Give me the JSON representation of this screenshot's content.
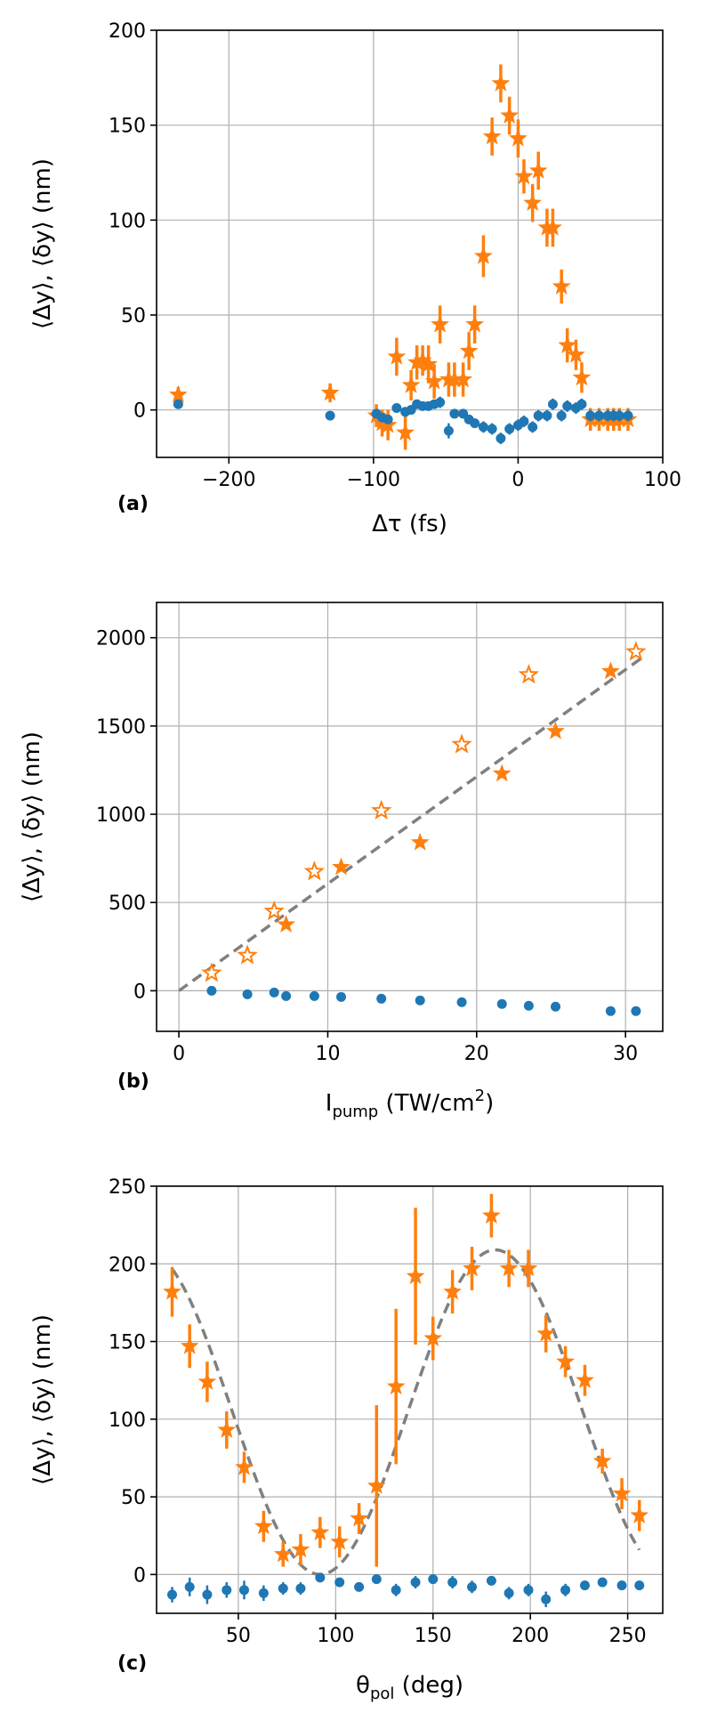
{
  "colors": {
    "orange": "#ff7f0e",
    "blue": "#1f77b4",
    "fit": "#808080",
    "grid": "#b0b0b0"
  },
  "chart_data": [
    {
      "type": "scatter",
      "panel_label": "(a)",
      "xlabel": "Δτ (fs)",
      "ylabel": "⟨Δy⟩, ⟨δy⟩ (nm)",
      "xlim": [
        -250,
        100
      ],
      "ylim": [
        -25,
        200
      ],
      "xticks": [
        -200,
        -100,
        0,
        100
      ],
      "xtick_labels": [
        "−200",
        "−100",
        "0",
        "100"
      ],
      "yticks": [
        0,
        50,
        100,
        150,
        200
      ],
      "ytick_labels": [
        "0",
        "50",
        "100",
        "150",
        "200"
      ],
      "series": [
        {
          "name": "Δy",
          "marker": "star",
          "filled": true,
          "x": [
            -235,
            -130,
            -98,
            -94,
            -90,
            -84,
            -78,
            -74,
            -70,
            -66,
            -62,
            -58,
            -54,
            -48,
            -44,
            -38,
            -34,
            -30,
            -24,
            -18,
            -12,
            -6,
            0,
            4,
            10,
            14,
            20,
            24,
            30,
            34,
            40,
            44,
            50,
            56,
            62,
            66,
            70,
            76
          ],
          "y": [
            8,
            9,
            -3,
            -7,
            -8,
            28,
            -12,
            13,
            25,
            26,
            24,
            15,
            45,
            16,
            16,
            16,
            31,
            45,
            81,
            144,
            172,
            155,
            143,
            123,
            109,
            126,
            96,
            96,
            65,
            34,
            29,
            17,
            -5,
            -5,
            -5,
            -5,
            -5,
            -5
          ],
          "yerr": [
            4,
            5,
            6,
            7,
            8,
            10,
            9,
            8,
            9,
            8,
            10,
            9,
            10,
            9,
            9,
            9,
            10,
            10,
            11,
            10,
            10,
            10,
            10,
            9,
            10,
            10,
            10,
            10,
            9,
            9,
            8,
            8,
            6,
            6,
            6,
            6,
            6,
            6
          ]
        },
        {
          "name": "δy",
          "marker": "circle",
          "x": [
            -235,
            -130,
            -98,
            -94,
            -90,
            -84,
            -78,
            -74,
            -70,
            -66,
            -62,
            -58,
            -54,
            -48,
            -44,
            -38,
            -34,
            -30,
            -24,
            -18,
            -12,
            -6,
            0,
            4,
            10,
            14,
            20,
            24,
            30,
            34,
            40,
            44,
            50,
            56,
            62,
            66,
            70,
            76
          ],
          "y": [
            3,
            -3,
            -2,
            -4,
            -5,
            1,
            -1,
            0,
            3,
            2,
            2,
            3,
            4,
            -11,
            -2,
            -2,
            -5,
            -7,
            -9,
            -10,
            -15,
            -10,
            -8,
            -6,
            -9,
            -3,
            -3,
            3,
            -3,
            2,
            1,
            3,
            -3,
            -3,
            -3,
            -3,
            -3,
            -3
          ],
          "yerr": [
            2,
            2,
            2,
            2,
            2,
            2,
            2,
            2,
            2,
            2,
            2,
            2,
            3,
            4,
            2,
            2,
            2,
            2,
            3,
            3,
            3,
            3,
            3,
            3,
            3,
            3,
            3,
            3,
            3,
            3,
            3,
            3,
            3,
            3,
            3,
            3,
            3,
            3
          ]
        }
      ]
    },
    {
      "type": "scatter",
      "panel_label": "(b)",
      "xlabel_main": "I",
      "xlabel_sub": "pump",
      "xlabel_unit": " (TW/cm",
      "xlabel_sup": "2",
      "xlabel_end": ")",
      "ylabel": "⟨Δy⟩, ⟨δy⟩ (nm)",
      "xlim": [
        -1.5,
        32.5
      ],
      "ylim": [
        -230,
        2200
      ],
      "xticks": [
        0,
        10,
        20,
        30
      ],
      "xtick_labels": [
        "0",
        "10",
        "20",
        "30"
      ],
      "yticks": [
        0,
        500,
        1000,
        1500,
        2000
      ],
      "ytick_labels": [
        "0",
        "500",
        "1000",
        "1500",
        "2000"
      ],
      "fit_line": {
        "x": [
          0,
          31
        ],
        "y": [
          0,
          1880
        ]
      },
      "series": [
        {
          "name": "Δy filled",
          "marker": "star",
          "filled": true,
          "x": [
            7.2,
            10.9,
            16.2,
            21.7,
            25.3,
            29
          ],
          "y": [
            375,
            700,
            840,
            1230,
            1470,
            1810
          ]
        },
        {
          "name": "Δy open",
          "marker": "star",
          "filled": false,
          "x": [
            2.2,
            4.6,
            6.4,
            9.1,
            13.6,
            19,
            23.5,
            30.7
          ],
          "y": [
            100,
            200,
            450,
            675,
            1020,
            1395,
            1790,
            1920
          ]
        },
        {
          "name": "δy",
          "marker": "circle",
          "x": [
            2.2,
            4.6,
            6.4,
            7.2,
            9.1,
            10.9,
            13.6,
            16.2,
            19,
            21.7,
            23.5,
            25.3,
            29,
            30.7
          ],
          "y": [
            0,
            -20,
            -10,
            -30,
            -30,
            -35,
            -45,
            -55,
            -65,
            -75,
            -85,
            -90,
            -115,
            -115
          ]
        }
      ]
    },
    {
      "type": "scatter",
      "panel_label": "(c)",
      "xlabel_main": "θ",
      "xlabel_sub": "pol",
      "xlabel_unit": " (deg)",
      "ylabel": "⟨Δy⟩, ⟨δy⟩ (nm)",
      "xlim": [
        8,
        268
      ],
      "ylim": [
        -25,
        250
      ],
      "xticks": [
        50,
        100,
        150,
        200,
        250
      ],
      "xtick_labels": [
        "50",
        "100",
        "150",
        "200",
        "250"
      ],
      "yticks": [
        0,
        50,
        100,
        150,
        200,
        250
      ],
      "ytick_labels": [
        "0",
        "50",
        "100",
        "150",
        "200",
        "250"
      ],
      "fit_curve": {
        "center": 92,
        "amplitude": 209,
        "offset": 0,
        "x_start": 16,
        "x_end": 256
      },
      "series": [
        {
          "name": "Δy",
          "marker": "star",
          "filled": true,
          "x": [
            16,
            25,
            34,
            44,
            53,
            63,
            73,
            82,
            92,
            102,
            112,
            121,
            131,
            141,
            150,
            160,
            170,
            180,
            189,
            199,
            208,
            218,
            228,
            237,
            247,
            256
          ],
          "y": [
            182,
            147,
            124,
            93,
            69,
            31,
            13,
            16,
            27,
            21,
            36,
            57,
            121,
            192,
            152,
            182,
            197,
            231,
            197,
            197,
            155,
            137,
            125,
            73,
            52,
            38
          ],
          "yerr": [
            16,
            14,
            13,
            12,
            10,
            10,
            8,
            10,
            10,
            10,
            10,
            52,
            50,
            44,
            14,
            14,
            14,
            14,
            12,
            12,
            12,
            10,
            10,
            8,
            10,
            10
          ]
        },
        {
          "name": "δy",
          "marker": "circle",
          "x": [
            16,
            25,
            34,
            44,
            53,
            63,
            73,
            82,
            92,
            102,
            112,
            121,
            131,
            141,
            150,
            160,
            170,
            180,
            189,
            199,
            208,
            218,
            228,
            237,
            247,
            256
          ],
          "y": [
            -13,
            -8,
            -13,
            -10,
            -10,
            -12,
            -9,
            -9,
            -2,
            -5,
            -8,
            -3,
            -10,
            -5,
            -3,
            -5,
            -8,
            -4,
            -12,
            -10,
            -16,
            -10,
            -7,
            -5,
            -7,
            -7
          ],
          "yerr": [
            5,
            6,
            6,
            5,
            6,
            5,
            4,
            4,
            3,
            3,
            3,
            3,
            4,
            4,
            3,
            4,
            4,
            3,
            4,
            4,
            5,
            4,
            3,
            3,
            3,
            3
          ]
        }
      ]
    }
  ]
}
